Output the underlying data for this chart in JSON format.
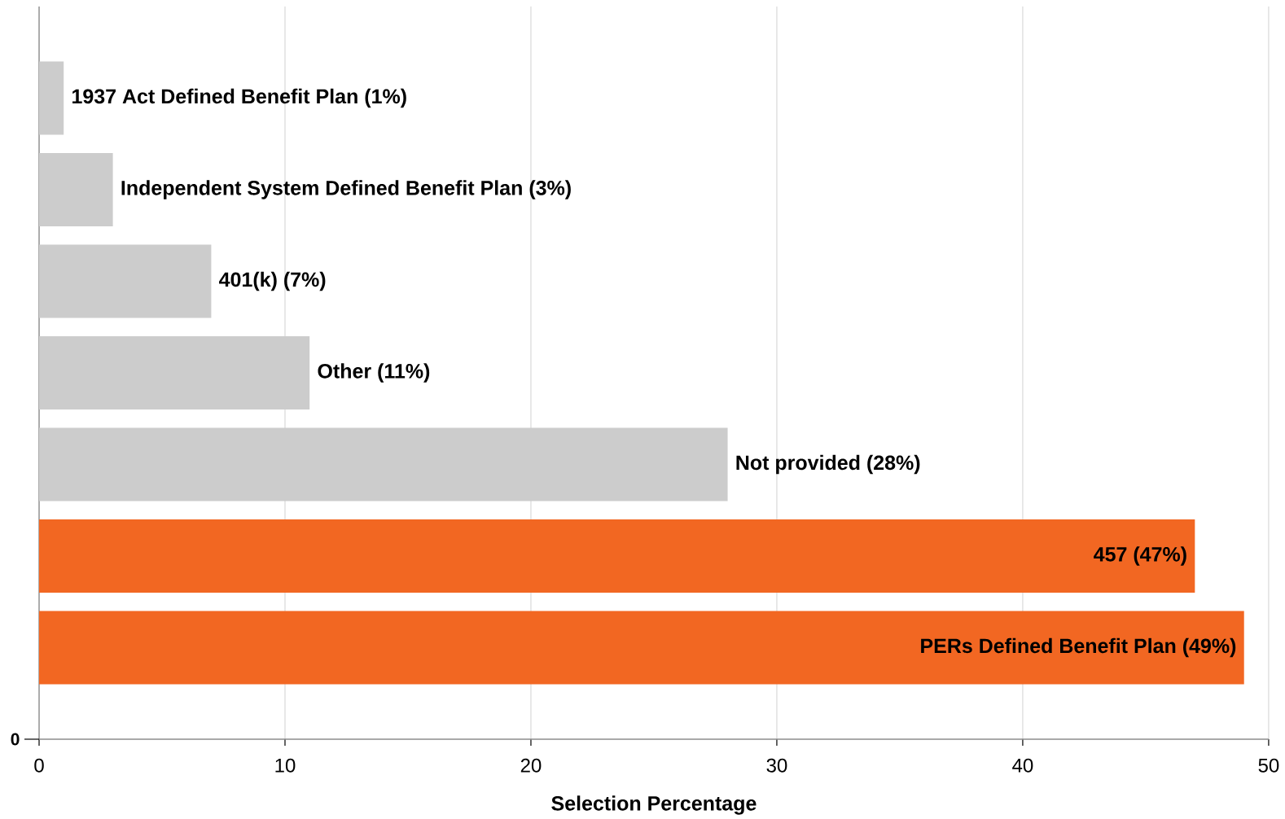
{
  "chart_data": {
    "type": "bar",
    "orientation": "horizontal",
    "categories": [
      null,
      null,
      null,
      null,
      null,
      null,
      null
    ],
    "values": [
      1,
      3,
      7,
      11,
      28,
      47,
      49
    ],
    "colors": [
      "#cccccc",
      "#cccccc",
      "#cccccc",
      "#cccccc",
      "#cccccc",
      "#f26722",
      "#f26722"
    ],
    "value_labels": [
      "1937 Act Defined Benefit Plan (1%)",
      "Independent System Defined Benefit Plan (3%)",
      "401(k) (7%)",
      "Other (11%)",
      "Not provided (28%)",
      "457 (47%)",
      "PERs Defined Benefit Plan (49%)"
    ],
    "xlabel": "Selection Percentage",
    "xlim": [
      0,
      50
    ],
    "xticks": [
      0,
      10,
      20,
      30,
      40,
      50
    ],
    "grid": "x",
    "annotations": [
      "0"
    ]
  }
}
